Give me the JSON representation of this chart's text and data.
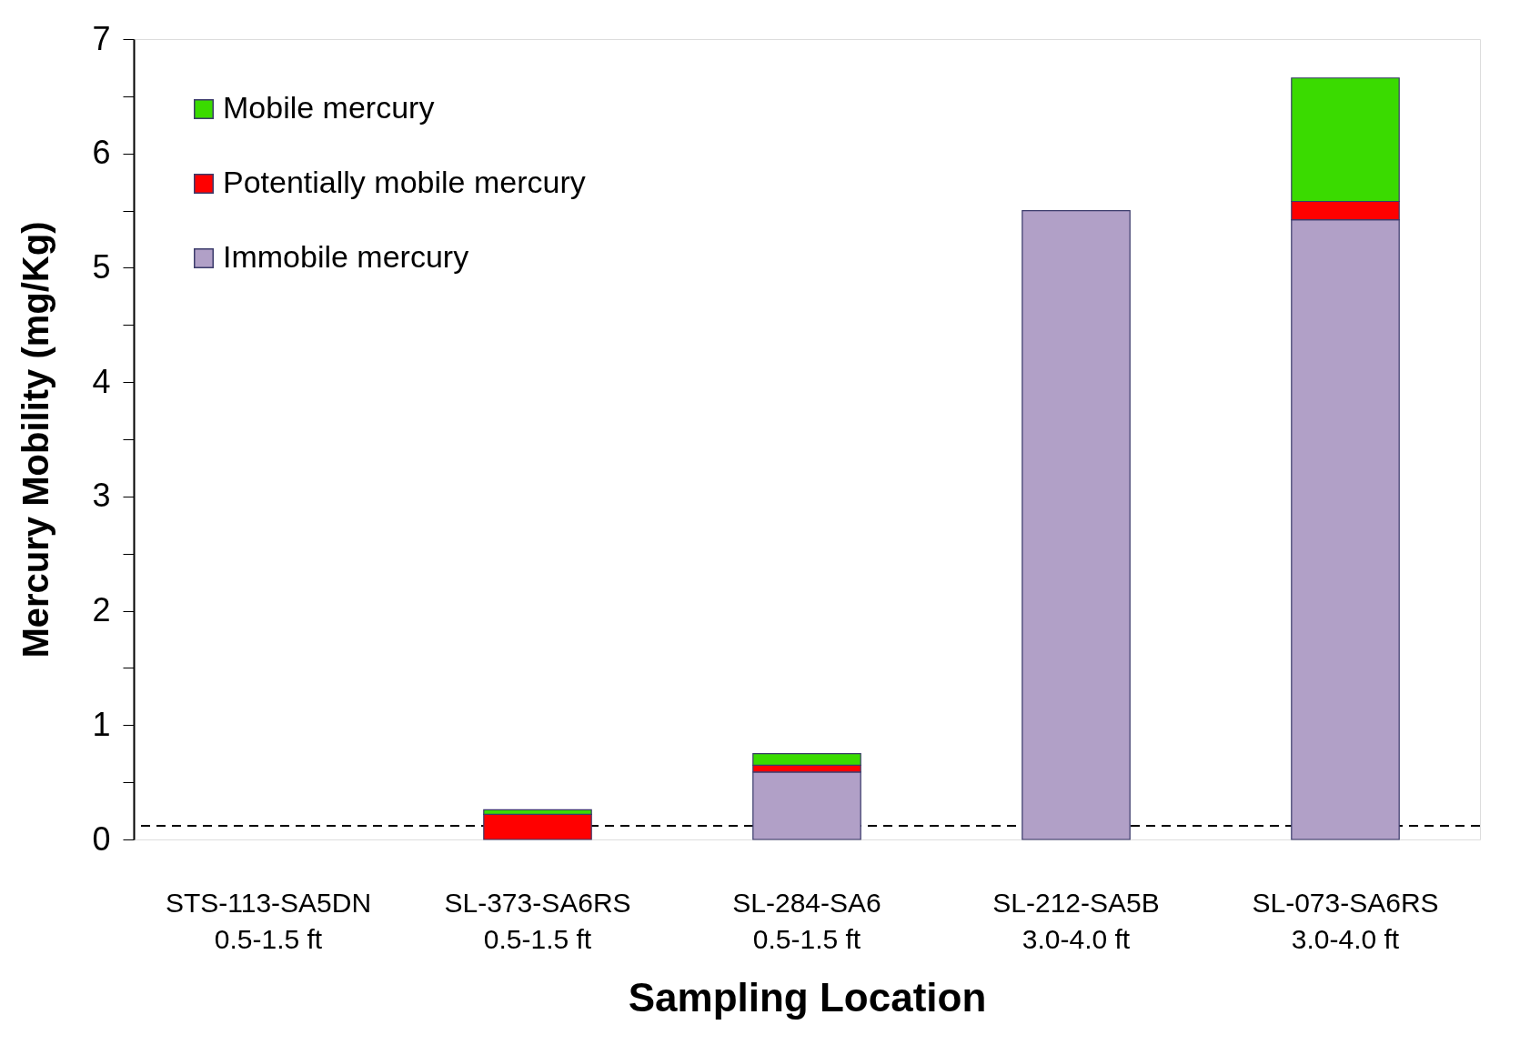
{
  "chart_data": {
    "type": "bar",
    "stacked": true,
    "xlabel": "Sampling Location",
    "ylabel": "Mercury Mobility (mg/Kg)",
    "categories": [
      "STS-113-SA5DN\n0.5-1.5 ft",
      "SL-373-SA6RS\n0.5-1.5 ft",
      "SL-284-SA6\n0.5-1.5 ft",
      "SL-212-SA5B\n3.0-4.0 ft",
      "SL-073-SA6RS\n3.0-4.0 ft"
    ],
    "series": [
      {
        "name": "Immobile mercury",
        "color": "#b1a0c7",
        "values": [
          null,
          null,
          0.59,
          5.5,
          5.42
        ]
      },
      {
        "name": "Potentially mobile mercury",
        "color": "#ff0000",
        "values": [
          null,
          0.22,
          0.06,
          null,
          0.16
        ]
      },
      {
        "name": "Mobile mercury",
        "color": "#3adb00",
        "values": [
          null,
          0.04,
          0.1,
          null,
          1.08
        ]
      }
    ],
    "ylim": [
      0,
      7
    ],
    "yticks": [
      0,
      {
        "value": 0.5,
        "label": null
      },
      1,
      {
        "value": 1.5,
        "label": null
      },
      2,
      {
        "value": 2.5,
        "label": null
      },
      3,
      {
        "value": 3.5,
        "label": null
      },
      4,
      {
        "value": 4.5,
        "label": null
      },
      5,
      {
        "value": 5.5,
        "label": null
      },
      6,
      {
        "value": 6.5,
        "label": null
      },
      7
    ],
    "ref_lines": [
      {
        "axis": "y",
        "value": 0.12,
        "line_style": "dashed",
        "color": "#000000"
      }
    ],
    "legend": "top left",
    "grid": false
  }
}
